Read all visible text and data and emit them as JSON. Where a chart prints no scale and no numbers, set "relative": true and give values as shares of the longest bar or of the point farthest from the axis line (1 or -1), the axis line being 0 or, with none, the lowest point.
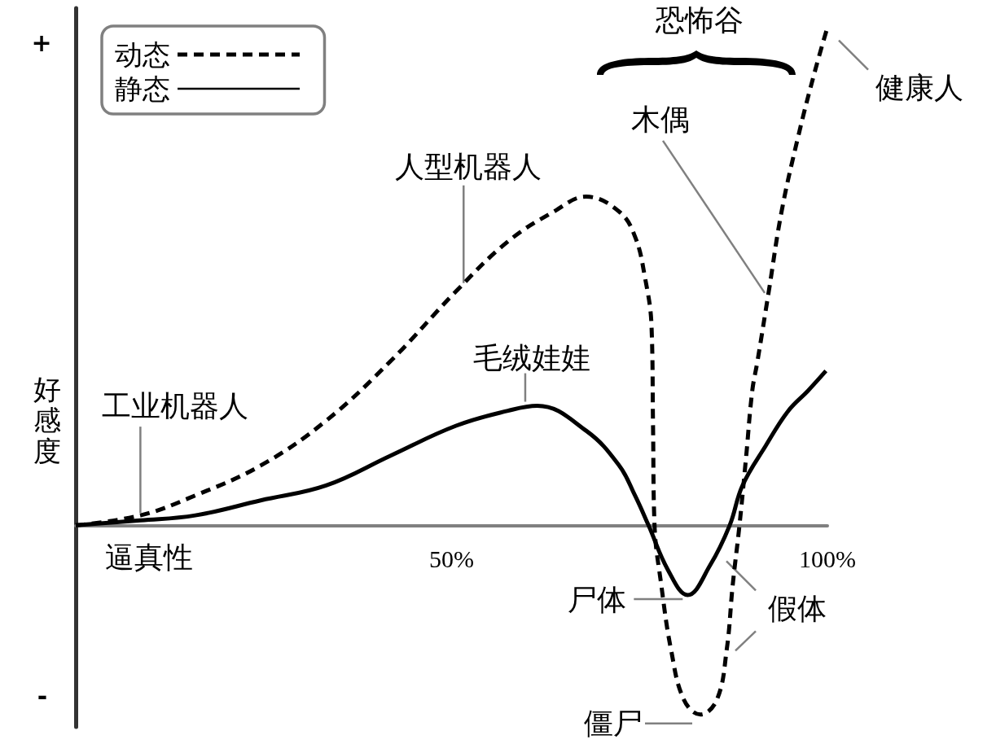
{
  "chart_data": {
    "type": "line",
    "xlabel": "逼真性",
    "ylabel": "好感度",
    "relative": true,
    "xlim": [
      0,
      100
    ],
    "xticks": [
      {
        "value": 50,
        "label": "50%"
      },
      {
        "value": 100,
        "label": "100%"
      }
    ],
    "legend": "top left",
    "marker": "none",
    "series": [
      {
        "name": "动态",
        "color": "#000000",
        "line_style": "dashed",
        "x": [
          0,
          8.6,
          15.9,
          24.6,
          33.3,
          41.9,
          50.6,
          57.5,
          63.6,
          67.9,
          72.3,
          74.4,
          75.7,
          76.6,
          76.8,
          77.0,
          77.9,
          79.2,
          80.9,
          83.1,
          85.3,
          86.6,
          87.4,
          88.3,
          89.2,
          90.0,
          90.7,
          92.2,
          93.9,
          96.1,
          98.3,
          100
        ],
        "values": [
          0,
          0.02,
          0.06,
          0.12,
          0.21,
          0.33,
          0.47,
          0.57,
          0.63,
          0.66,
          0.63,
          0.58,
          0.5,
          0.4,
          0.2,
          0,
          -0.12,
          -0.25,
          -0.35,
          -0.38,
          -0.35,
          -0.25,
          -0.12,
          0,
          0.14,
          0.27,
          0.33,
          0.47,
          0.63,
          0.78,
          0.91,
          1.0
        ]
      },
      {
        "name": "静态",
        "color": "#000000",
        "line_style": "solid",
        "x": [
          0,
          8.6,
          15.9,
          24.6,
          33.3,
          41.9,
          50.6,
          57.5,
          61.4,
          67.9,
          72.3,
          74.4,
          76.2,
          78.8,
          81.4,
          84.4,
          87.0,
          88.7,
          91.8,
          94.8,
          97.4,
          99.8
        ],
        "values": [
          0,
          0.01,
          0.02,
          0.05,
          0.08,
          0.14,
          0.2,
          0.23,
          0.24,
          0.19,
          0.12,
          0.06,
          0,
          -0.09,
          -0.14,
          -0.08,
          0,
          0.08,
          0.16,
          0.23,
          0.27,
          0.31
        ]
      }
    ],
    "annotations": [
      "+",
      "恐怖谷",
      {
        "text": "健康人",
        "x": 100,
        "y": 1.0
      },
      {
        "text": "木偶",
        "x": 92.2,
        "y": 0.47
      },
      {
        "text": "人型机器人",
        "x": 51.6,
        "y": 0.48
      },
      {
        "text": "毛绒娃娃",
        "x": 59.8,
        "y": 0.24
      },
      {
        "text": "工业机器人",
        "x": 8.6,
        "y": 0.02
      },
      {
        "text": "尸体",
        "x": 81.4,
        "y": -0.14
      },
      {
        "text": "假体",
        "x": 84.4,
        "y": -0.08
      },
      "-",
      {
        "text": "僵尸",
        "x": 83.1,
        "y": -0.38
      }
    ]
  }
}
